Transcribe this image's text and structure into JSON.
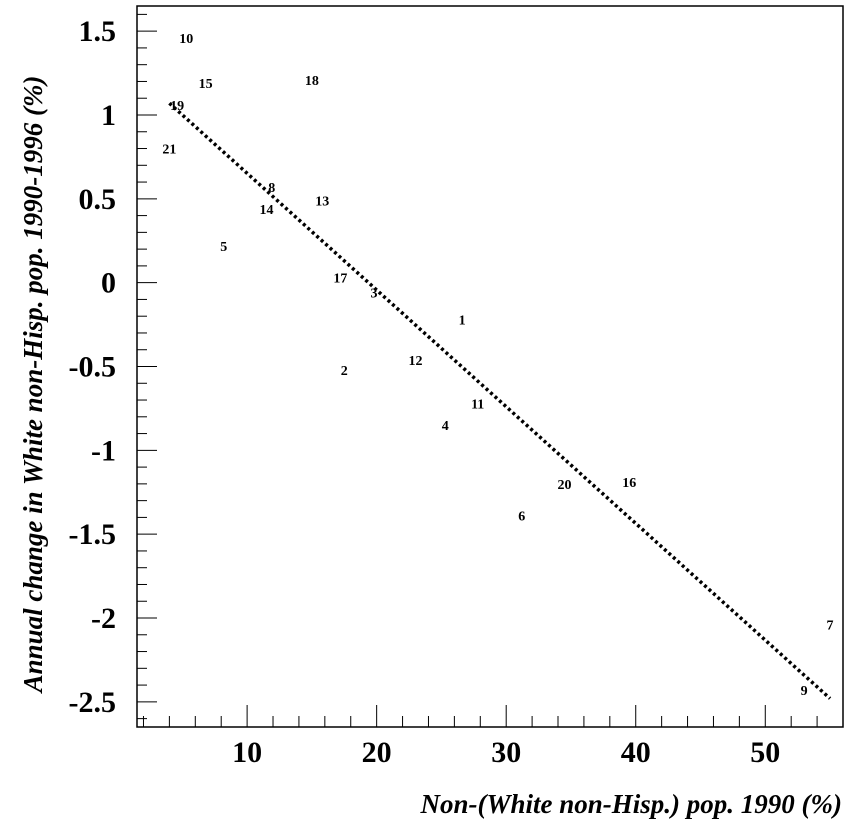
{
  "chart_data": {
    "type": "scatter",
    "title": "",
    "xlabel": "Non-(White non-Hisp.) pop. 1990 (%)",
    "ylabel": "Annual change in White non-Hisp. pop. 1990-1996 (%)",
    "xlim": [
      1.5,
      56
    ],
    "ylim": [
      -2.65,
      1.65
    ],
    "x_ticks": [
      10,
      20,
      30,
      40,
      50
    ],
    "x_tick_labels": [
      "10",
      "20",
      "30",
      "40",
      "50"
    ],
    "y_ticks": [
      1.5,
      1,
      0.5,
      0,
      -0.5,
      -1,
      -1.5,
      -2,
      -2.5
    ],
    "y_tick_labels": [
      "1.5",
      "1",
      "0.5",
      "0",
      "-0.5",
      "-1",
      "-1.5",
      "-2",
      "-2.5"
    ],
    "grid": false,
    "points": [
      {
        "label": "1",
        "x": 26.6,
        "y": -0.22
      },
      {
        "label": "2",
        "x": 17.5,
        "y": -0.52
      },
      {
        "label": "3",
        "x": 19.8,
        "y": -0.06
      },
      {
        "label": "4",
        "x": 25.3,
        "y": -0.85
      },
      {
        "label": "5",
        "x": 8.2,
        "y": 0.22
      },
      {
        "label": "6",
        "x": 31.2,
        "y": -1.39
      },
      {
        "label": "7",
        "x": 55.0,
        "y": -2.04
      },
      {
        "label": "8",
        "x": 11.9,
        "y": 0.57
      },
      {
        "label": "9",
        "x": 53.0,
        "y": -2.43
      },
      {
        "label": "10",
        "x": 5.3,
        "y": 1.46
      },
      {
        "label": "11",
        "x": 27.8,
        "y": -0.72
      },
      {
        "label": "12",
        "x": 23.0,
        "y": -0.46
      },
      {
        "label": "13",
        "x": 15.8,
        "y": 0.49
      },
      {
        "label": "14",
        "x": 11.5,
        "y": 0.44
      },
      {
        "label": "15",
        "x": 6.8,
        "y": 1.19
      },
      {
        "label": "16",
        "x": 39.5,
        "y": -1.19
      },
      {
        "label": "17",
        "x": 17.2,
        "y": 0.03
      },
      {
        "label": "18",
        "x": 15.0,
        "y": 1.21
      },
      {
        "label": "19",
        "x": 4.6,
        "y": 1.06
      },
      {
        "label": "20",
        "x": 34.5,
        "y": -1.2
      },
      {
        "label": "21",
        "x": 4.0,
        "y": 0.8
      }
    ],
    "fit_line": {
      "style": "dotted",
      "x": [
        4.0,
        55.0
      ],
      "y": [
        1.07,
        -2.48
      ]
    }
  }
}
